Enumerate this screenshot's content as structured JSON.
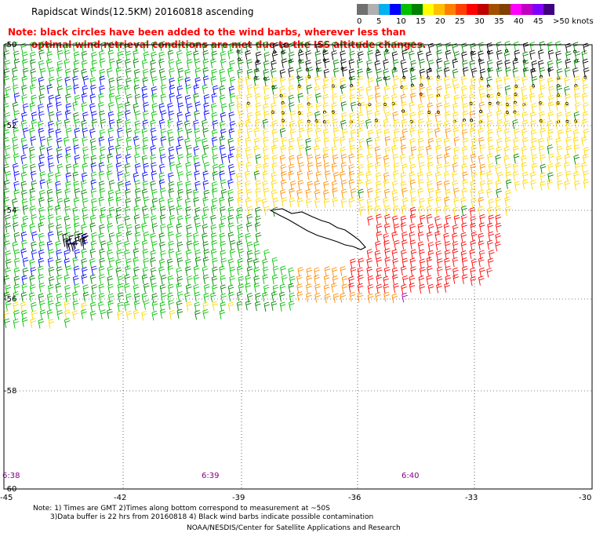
{
  "title": "Rapidscat Winds(12.5KM) 20160818 ascending",
  "note_line1": "Note: black circles have been added to the wind barbs, wherever less than",
  "note_line2": "optimal wind retrieval conditions are met due to the ISS altitude changes.",
  "colorbar": {
    "labels": [
      "0",
      "5",
      "10",
      "15",
      "20",
      "25",
      "30",
      "35",
      "40",
      "45",
      ">50 knots"
    ],
    "colors": [
      "#707070",
      "#b0b0b0",
      "#00b0f0",
      "#0000ff",
      "#00c000",
      "#008000",
      "#ffff00",
      "#ffc000",
      "#ff8000",
      "#ff4000",
      "#ff0000",
      "#c00000",
      "#a05000",
      "#804000",
      "#ff00ff",
      "#c000c0",
      "#8000ff",
      "#400080"
    ]
  },
  "map": {
    "lon_labels": [
      "-45",
      "-42",
      "-39",
      "-36",
      "-33",
      "-30"
    ],
    "lat_labels": [
      "-50",
      "-52",
      "-54",
      "-56",
      "-58",
      "-60"
    ],
    "time_labels": [
      "6:38",
      "6:39",
      "6:40"
    ],
    "wind_colors": {
      "calm_blue": "#0000ff",
      "green": "#00c000",
      "dark_green": "#008000",
      "yellow": "#ffd700",
      "orange": "#ff8c00",
      "red": "#ff0000",
      "purple": "#a000c0",
      "contaminated": "#000000"
    }
  },
  "footnote_line1": "Note: 1) Times are GMT 2)Times along bottom correspond to measurement at ~50S",
  "footnote_line2": "3)Data buffer is 22 hrs from 20160818 4) Black wind barbs indicate possible contamination",
  "credit": "NOAA/NESDIS/Center for Satellite Applications and Research"
}
